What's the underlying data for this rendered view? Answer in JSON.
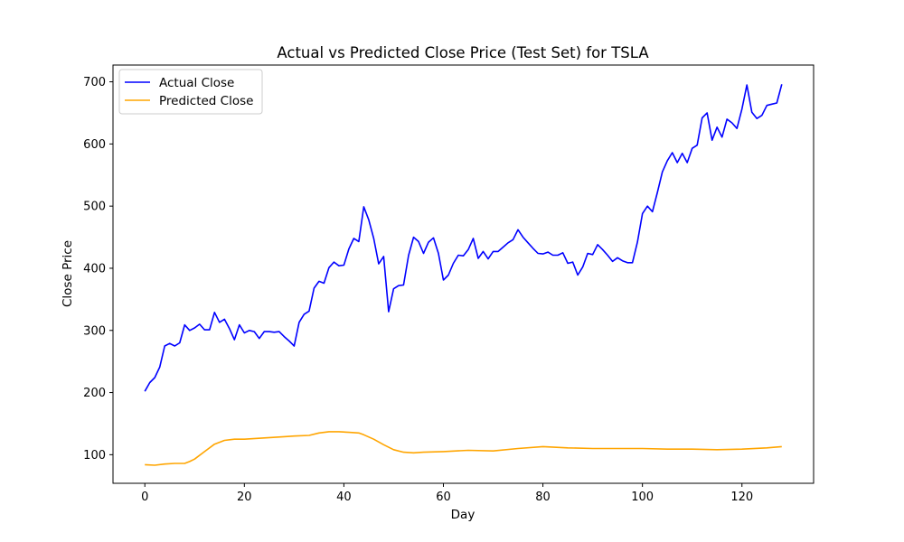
{
  "chart_data": {
    "type": "line",
    "title": "Actual vs Predicted Close Price (Test Set) for TSLA",
    "xlabel": "Day",
    "ylabel": "Close Price",
    "xlim": [
      -6.4,
      134.4
    ],
    "ylim": [
      54,
      727
    ],
    "xticks": [
      0,
      20,
      40,
      60,
      80,
      100,
      120
    ],
    "yticks": [
      100,
      200,
      300,
      400,
      500,
      600,
      700
    ],
    "grid": false,
    "legend_position": "top-left",
    "series": [
      {
        "name": "Actual Close",
        "color": "#0000ff",
        "x": [
          0,
          1,
          2,
          3,
          4,
          5,
          6,
          7,
          8,
          9,
          10,
          11,
          12,
          13,
          14,
          15,
          16,
          17,
          18,
          19,
          20,
          21,
          22,
          23,
          24,
          25,
          26,
          27,
          28,
          29,
          30,
          31,
          32,
          33,
          34,
          35,
          36,
          37,
          38,
          39,
          40,
          41,
          42,
          43,
          44,
          45,
          46,
          47,
          48,
          49,
          50,
          51,
          52,
          53,
          54,
          55,
          56,
          57,
          58,
          59,
          60,
          61,
          62,
          63,
          64,
          65,
          66,
          67,
          68,
          69,
          70,
          71,
          72,
          73,
          74,
          75,
          76,
          77,
          78,
          79,
          80,
          81,
          82,
          83,
          84,
          85,
          86,
          87,
          88,
          89,
          90,
          91,
          92,
          93,
          94,
          95,
          96,
          97,
          98,
          99,
          100,
          101,
          102,
          103,
          104,
          105,
          106,
          107,
          108,
          109,
          110,
          111,
          112,
          113,
          114,
          115,
          116,
          117,
          118,
          119,
          120,
          121,
          122,
          123,
          124,
          125,
          126,
          127,
          128
        ],
        "values": [
          202,
          216,
          224,
          241,
          275,
          279,
          275,
          280,
          309,
          300,
          304,
          310,
          301,
          301,
          329,
          313,
          318,
          303,
          285,
          309,
          296,
          300,
          298,
          287,
          298,
          298,
          297,
          298,
          290,
          283,
          275,
          313,
          326,
          331,
          368,
          379,
          376,
          401,
          410,
          404,
          405,
          431,
          448,
          443,
          499,
          478,
          448,
          407,
          419,
          330,
          367,
          372,
          373,
          421,
          450,
          443,
          424,
          442,
          449,
          424,
          381,
          389,
          408,
          421,
          420,
          430,
          448,
          416,
          427,
          415,
          427,
          427,
          434,
          441,
          446,
          462,
          450,
          441,
          432,
          424,
          423,
          426,
          421,
          421,
          425,
          408,
          410,
          389,
          402,
          424,
          422,
          438,
          430,
          421,
          411,
          417,
          412,
          409,
          409,
          442,
          488,
          500,
          491,
          522,
          555,
          573,
          586,
          570,
          585,
          570,
          593,
          598,
          642,
          650,
          606,
          627,
          611,
          640,
          634,
          625,
          656,
          695,
          651,
          641,
          646,
          662,
          664,
          666,
          696
        ]
      },
      {
        "name": "Predicted Close",
        "color": "#ffa500",
        "x": [
          0,
          2,
          4,
          6,
          8,
          9,
          10,
          12,
          14,
          16,
          18,
          20,
          24,
          28,
          30,
          33,
          35,
          37,
          39,
          41,
          43,
          44,
          46,
          48,
          50,
          52,
          54,
          56,
          60,
          65,
          70,
          75,
          80,
          85,
          90,
          95,
          100,
          105,
          110,
          115,
          120,
          125,
          128
        ],
        "values": [
          84,
          83,
          85,
          86,
          86,
          89,
          93,
          105,
          117,
          123,
          125,
          125,
          127,
          129,
          130,
          131,
          135,
          137,
          137,
          136,
          135,
          132,
          125,
          116,
          108,
          104,
          103,
          104,
          105,
          107,
          106,
          110,
          113,
          111,
          110,
          110,
          110,
          109,
          109,
          108,
          109,
          111,
          113
        ]
      }
    ]
  }
}
